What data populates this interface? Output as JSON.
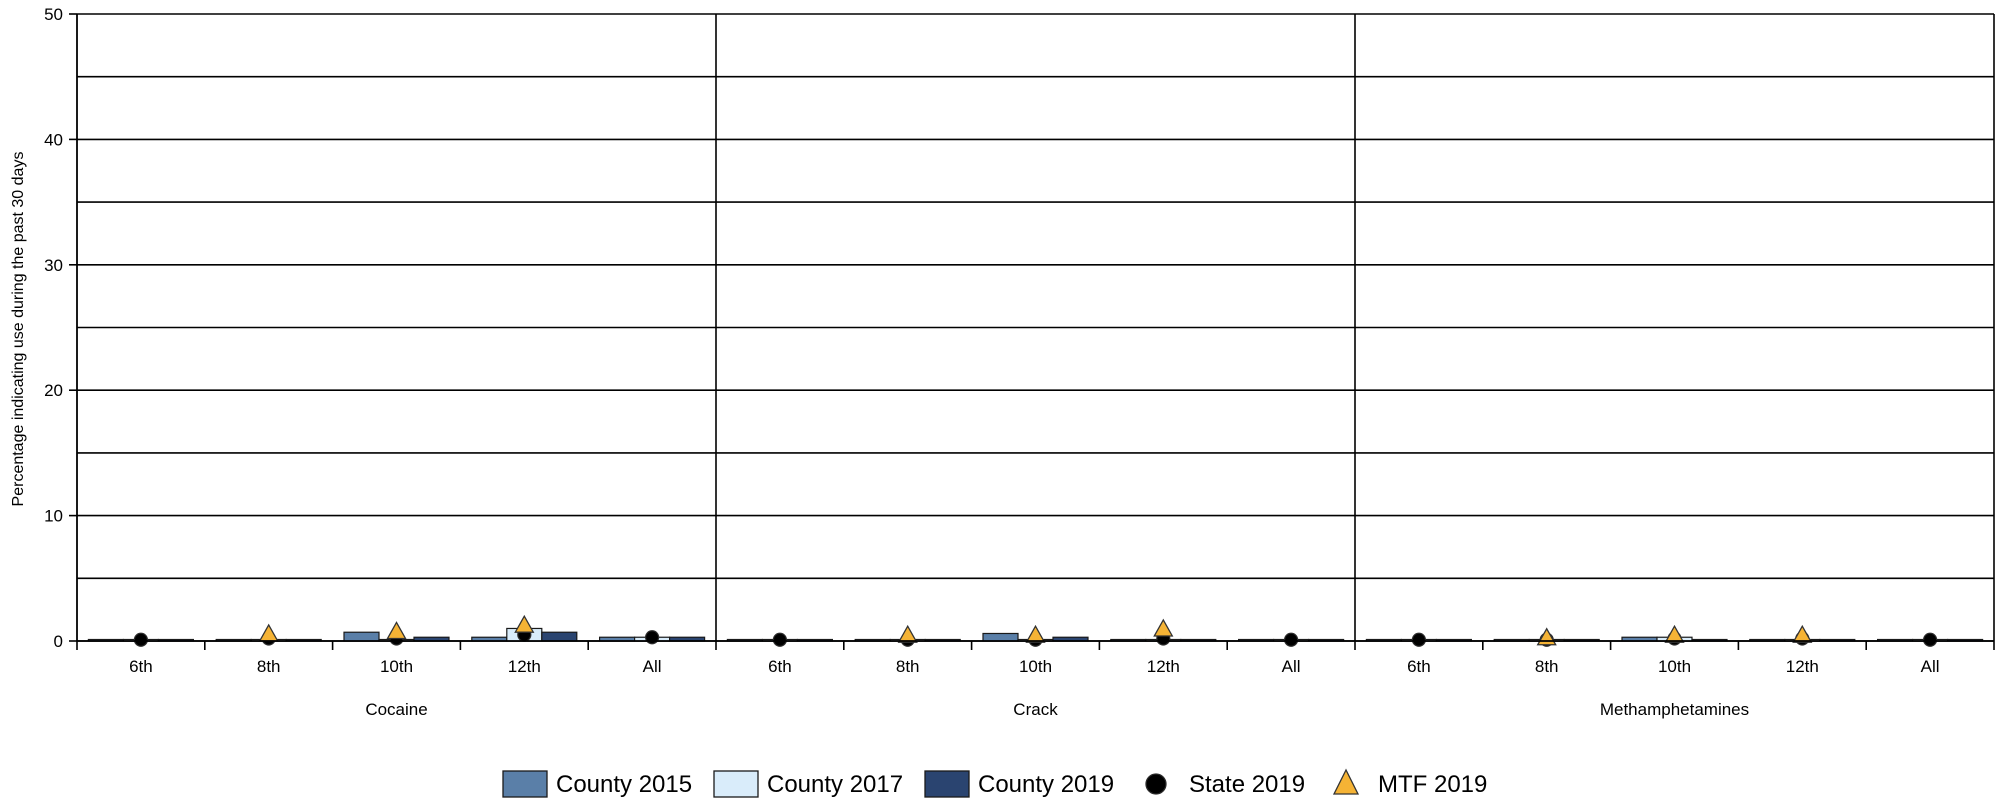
{
  "chart_data": {
    "type": "bar",
    "ylabel": "Percentage indicating use during the past 30 days",
    "ylim": [
      0,
      50
    ],
    "yticks": [
      0,
      10,
      20,
      30,
      40,
      50
    ],
    "grid": true,
    "legend_position": "bottom",
    "groups": [
      "Cocaine",
      "Crack",
      "Methamphetamines"
    ],
    "categories": [
      "6th",
      "8th",
      "10th",
      "12th",
      "All"
    ],
    "series": [
      {
        "name": "County 2015",
        "kind": "bar",
        "color": "#5a7fa8",
        "values": [
          [
            0.1,
            0.1,
            0.7,
            0.3,
            0.3
          ],
          [
            0.1,
            0.1,
            0.6,
            0.1,
            0.1
          ],
          [
            0.1,
            0.1,
            0.3,
            0.1,
            0.1
          ]
        ]
      },
      {
        "name": "County 2017",
        "kind": "bar",
        "color": "#d9ecfa",
        "values": [
          [
            0.0,
            0.1,
            0.1,
            1.0,
            0.3
          ],
          [
            0.0,
            0.0,
            0.1,
            0.1,
            0.1
          ],
          [
            0.0,
            0.1,
            0.3,
            0.1,
            0.1
          ]
        ]
      },
      {
        "name": "County 2019",
        "kind": "bar",
        "color": "#2a4470",
        "values": [
          [
            0.1,
            0.1,
            0.3,
            0.7,
            0.3
          ],
          [
            0.1,
            0.1,
            0.3,
            0.1,
            0.1
          ],
          [
            0.0,
            0.1,
            0.1,
            0.1,
            0.1
          ]
        ]
      },
      {
        "name": "State 2019",
        "kind": "point",
        "marker": "circle",
        "color": "#000000",
        "values": [
          [
            0.1,
            0.2,
            0.2,
            0.5,
            0.3
          ],
          [
            0.1,
            0.1,
            0.1,
            0.2,
            0.1
          ],
          [
            0.1,
            0.1,
            0.2,
            0.2,
            0.1
          ]
        ]
      },
      {
        "name": "MTF 2019",
        "kind": "point",
        "marker": "triangle",
        "color": "#f5b335",
        "values": [
          [
            null,
            0.4,
            0.6,
            1.1,
            null
          ],
          [
            null,
            0.3,
            0.3,
            0.8,
            null
          ],
          [
            null,
            0.1,
            0.3,
            0.3,
            null
          ]
        ]
      }
    ]
  }
}
